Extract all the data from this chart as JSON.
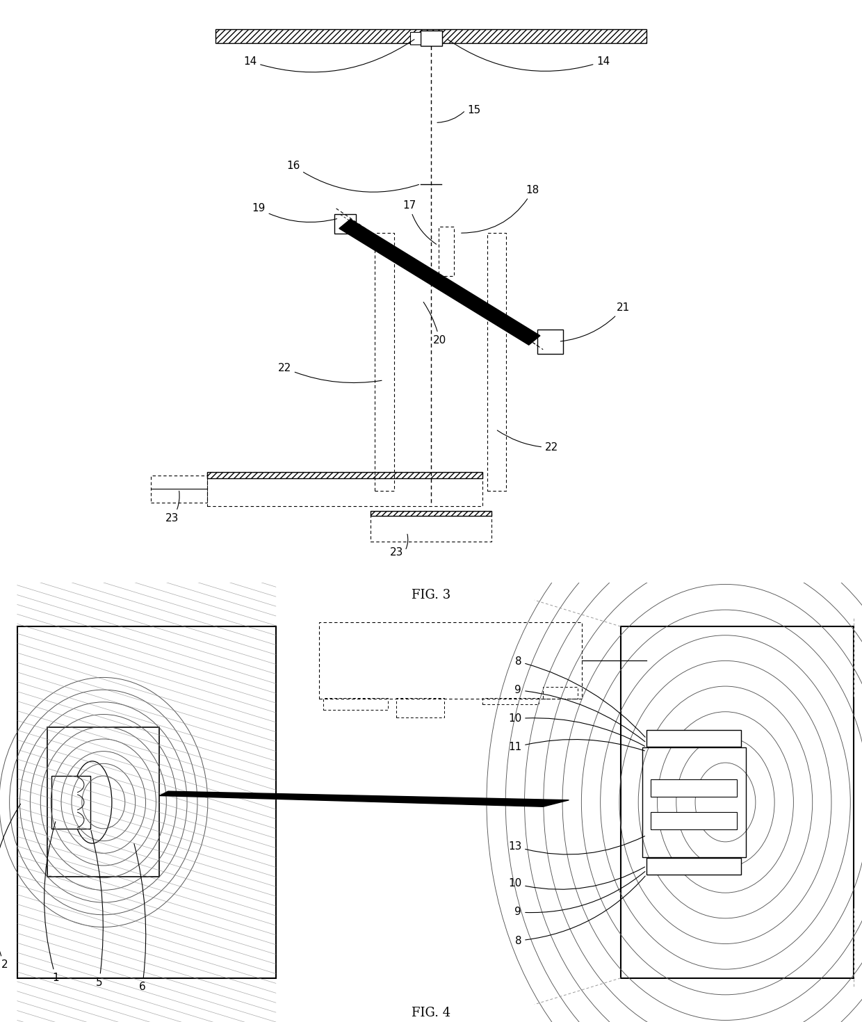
{
  "fig3_title": "FIG. 3",
  "fig4_title": "FIG. 4",
  "bg_color": "#ffffff",
  "line_color": "#000000",
  "gray_color": "#666666",
  "label_fontsize": 11,
  "title_fontsize": 13
}
